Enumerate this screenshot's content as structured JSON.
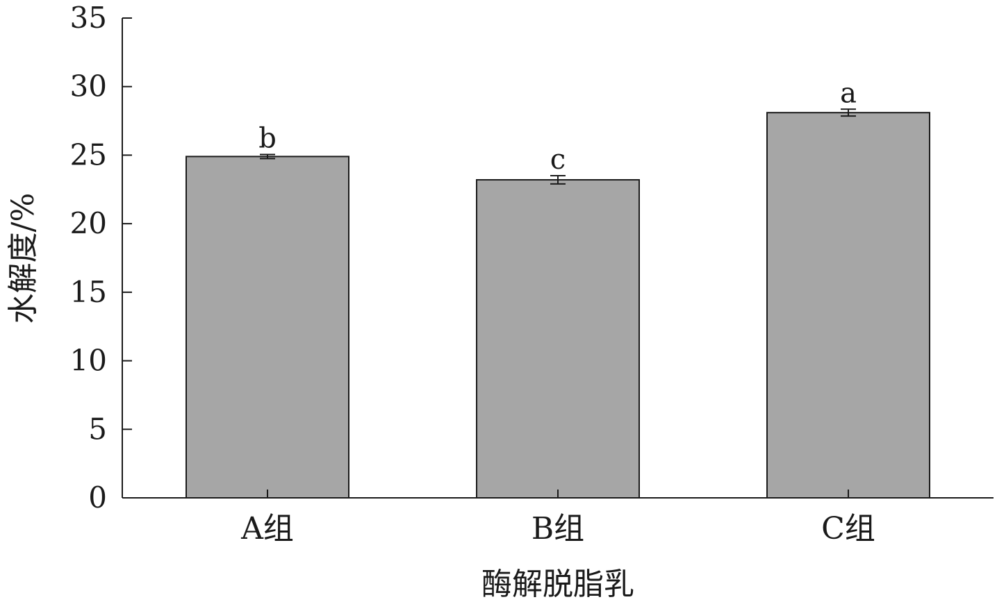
{
  "chart_data": {
    "type": "bar",
    "xlabel": "酶解脱脂乳",
    "ylabel": "水解度/%",
    "categories": [
      "A组",
      "B组",
      "C组"
    ],
    "values": [
      24.9,
      23.2,
      28.1
    ],
    "errors": [
      0.15,
      0.3,
      0.25
    ],
    "significance": [
      "b",
      "c",
      "a"
    ],
    "ylim": [
      0,
      35
    ],
    "yticks": [
      0,
      5,
      10,
      15,
      20,
      25,
      30,
      35
    ],
    "grid": false,
    "colors": {
      "bar": "#a6a6a6",
      "bar_edge": "#1a1a1a",
      "axis": "#1a1a1a"
    }
  }
}
